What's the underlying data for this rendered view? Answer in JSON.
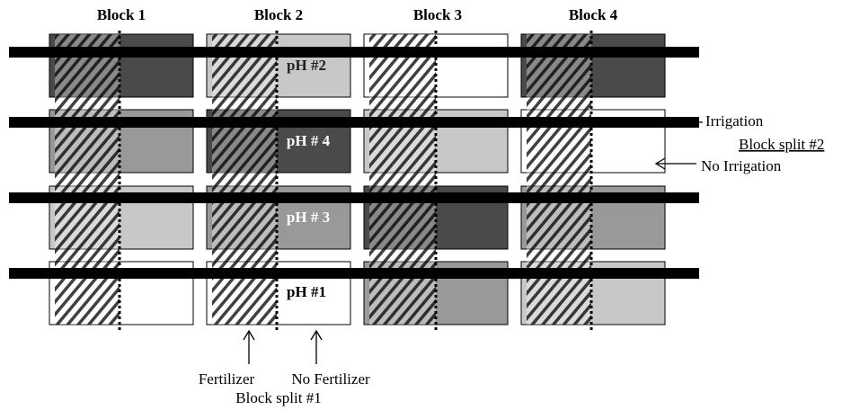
{
  "header": {
    "blocks": [
      "Block 1",
      "Block 2",
      "Block 3",
      "Block 4"
    ]
  },
  "plots": {
    "ph_labels": [
      "pH #2",
      "pH # 4",
      "pH # 3",
      "pH #1"
    ]
  },
  "annotations": {
    "irrigation": "Irrigation",
    "block_split_2": "Block split #2",
    "no_irrigation": "No Irrigation",
    "fertilizer": "Fertilizer",
    "no_fertilizer": "No Fertilizer",
    "block_split_1": "Block split #1"
  }
}
